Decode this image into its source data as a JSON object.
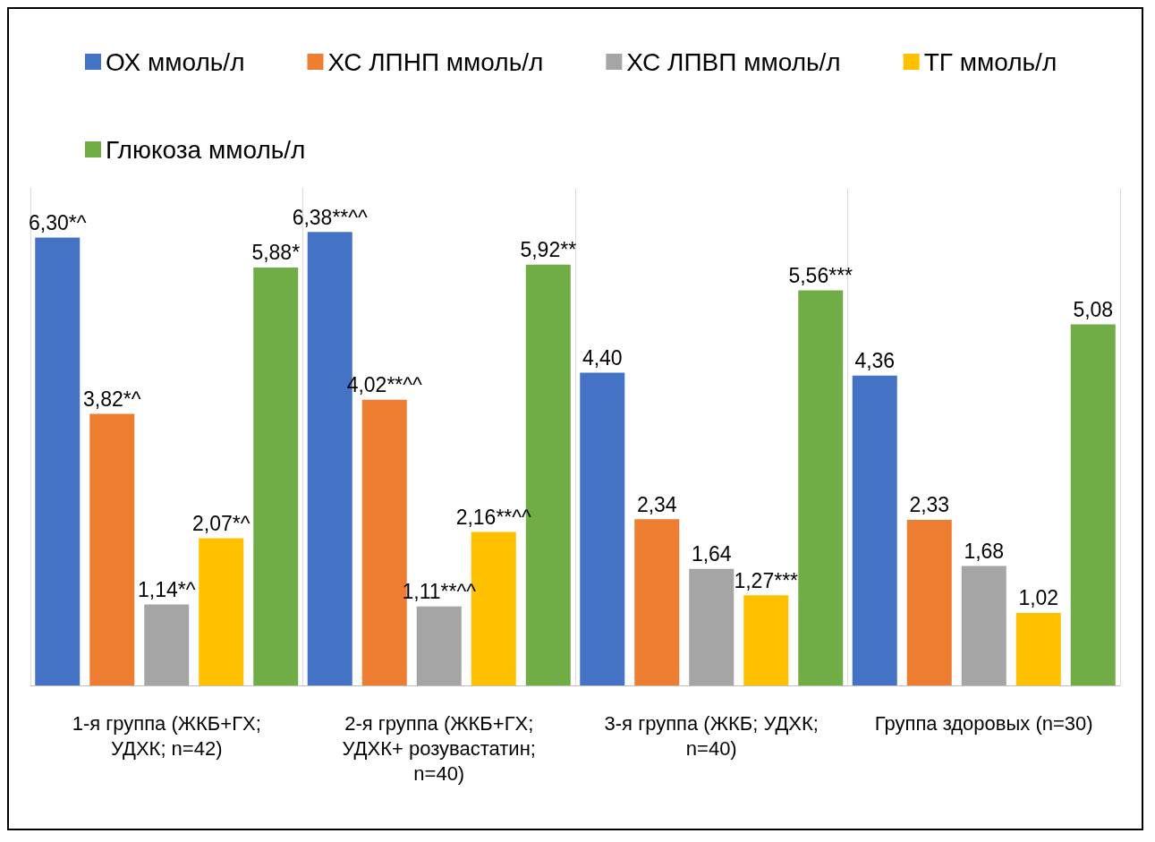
{
  "chart_data": {
    "type": "bar",
    "categories": [
      "1-я группа (ЖКБ+ГХ; УДХК; n=42)",
      "2-я группа (ЖКБ+ГХ; УДХК+ розувастатин; n=40)",
      "3-я группа (ЖКБ; УДХК; n=40)",
      "Группа здоровых (n=30)"
    ],
    "series": [
      {
        "name": "ОХ ммоль/л",
        "color": "#4472c4",
        "values": [
          6.3,
          6.38,
          4.4,
          4.36
        ],
        "value_labels": [
          "6,30*^",
          "6,38**^^",
          "4,40",
          "4,36"
        ]
      },
      {
        "name": "ХС ЛПНП ммоль/л",
        "color": "#ed7d31",
        "values": [
          3.82,
          4.02,
          2.34,
          2.33
        ],
        "value_labels": [
          "3,82*^",
          "4,02**^^",
          "2,34",
          "2,33"
        ]
      },
      {
        "name": "ХС ЛПВП ммоль/л",
        "color": "#a5a5a5",
        "values": [
          1.14,
          1.11,
          1.64,
          1.68
        ],
        "value_labels": [
          "1,14*^",
          "1,11**^^",
          "1,64",
          "1,68"
        ]
      },
      {
        "name": "ТГ ммоль/л",
        "color": "#ffc000",
        "values": [
          2.07,
          2.16,
          1.27,
          1.02
        ],
        "value_labels": [
          "2,07*^",
          "2,16**^^",
          "1,27***",
          "1,02"
        ]
      },
      {
        "name": "Глюкоза ммоль/л",
        "color": "#70ad47",
        "values": [
          5.88,
          5.92,
          5.56,
          5.08
        ],
        "value_labels": [
          "5,88*",
          "5,92**",
          "5,56***",
          "5,08"
        ]
      }
    ],
    "legend": "top",
    "grid": "x"
  }
}
